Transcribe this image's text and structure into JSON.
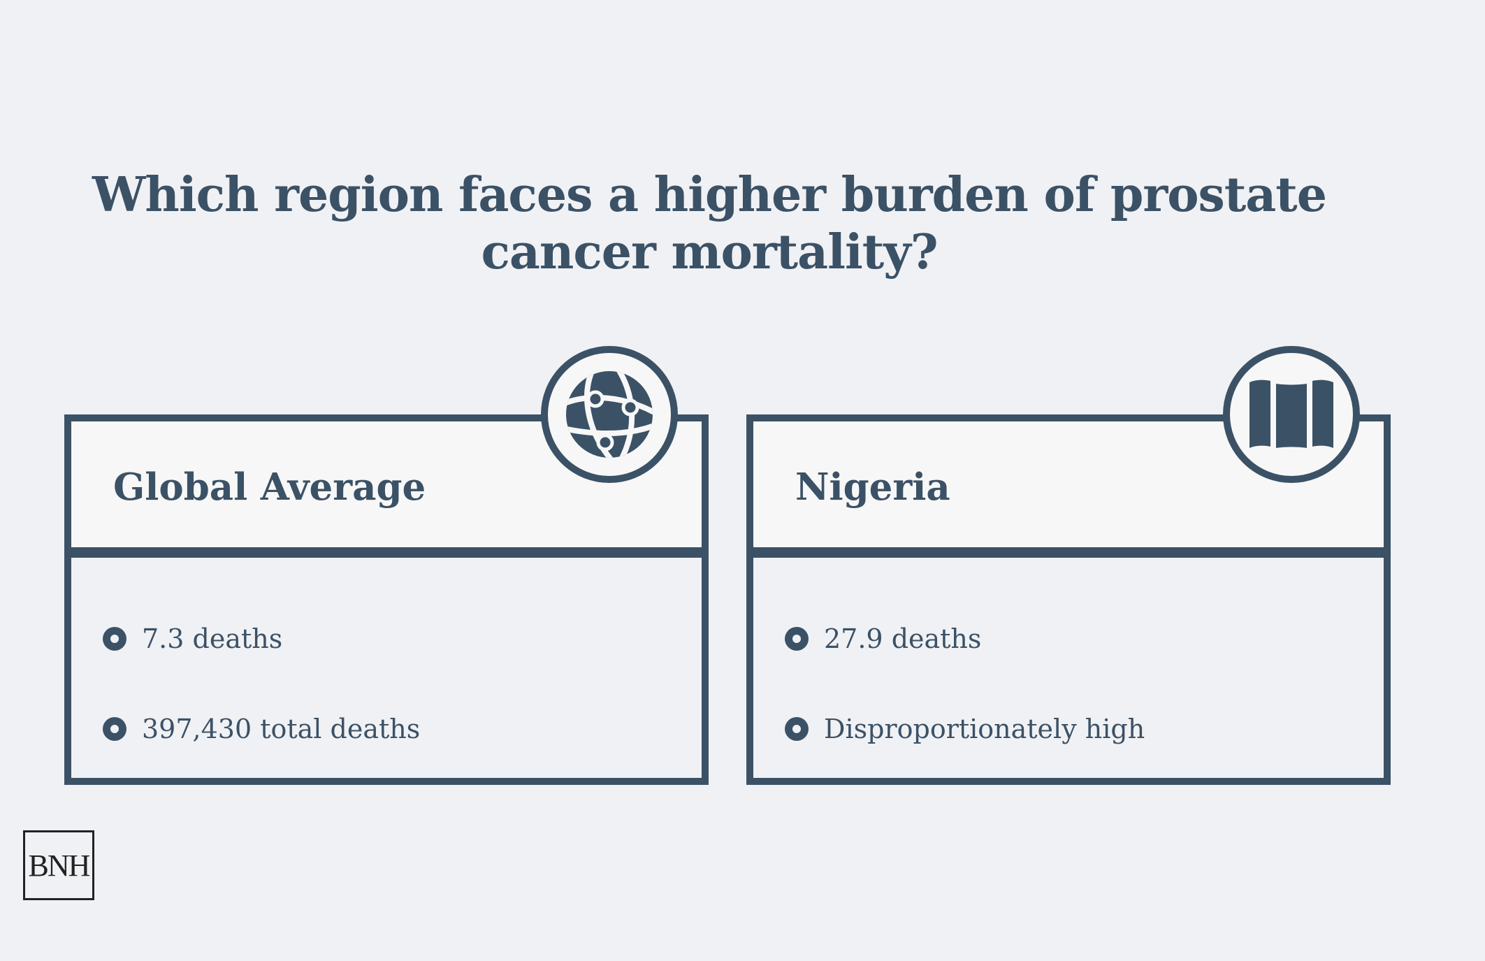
{
  "title": "Which region faces a higher burden of prostate cancer mortality?",
  "colors": {
    "accent": "#3b5166",
    "background": "#f0f1f4",
    "card_header_bg": "#f7f7f7"
  },
  "cards": [
    {
      "name": "Global Average",
      "icon": "globe-icon",
      "bullets": [
        "7.3 deaths",
        "397,430 total deaths"
      ]
    },
    {
      "name": "Nigeria",
      "icon": "map-icon",
      "bullets": [
        "27.9 deaths",
        "Disproportionately high"
      ]
    }
  ],
  "logo": {
    "text": "BNH"
  }
}
